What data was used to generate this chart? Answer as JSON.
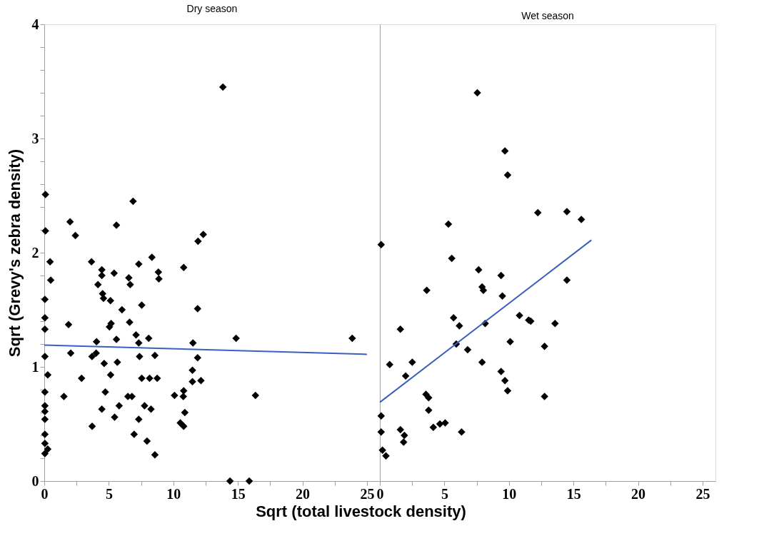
{
  "chart_data": [
    {
      "type": "scatter",
      "title": "Dry season",
      "xlabel": "Sqrt (total livestock density)",
      "ylabel": "Sqrt (Grevy's zebra density)",
      "xlim": [
        0,
        26
      ],
      "ylim": [
        0,
        4
      ],
      "xticks": [
        0,
        {
          "value": 2.5,
          "label": null
        },
        5,
        {
          "value": 7.5,
          "label": null
        },
        10,
        {
          "value": 12.5,
          "label": null
        },
        15,
        {
          "value": 17.5,
          "label": null
        },
        20,
        {
          "value": 22.5,
          "label": null
        },
        25
      ],
      "yticks": [
        0,
        {
          "value": 0.2,
          "label": null
        },
        {
          "value": 0.4,
          "label": null
        },
        {
          "value": 0.6,
          "label": null
        },
        {
          "value": 0.8,
          "label": null
        },
        1,
        {
          "value": 1.2,
          "label": null
        },
        {
          "value": 1.4,
          "label": null
        },
        {
          "value": 1.6,
          "label": null
        },
        {
          "value": 1.8,
          "label": null
        },
        2,
        {
          "value": 2.2,
          "label": null
        },
        {
          "value": 2.4,
          "label": null
        },
        {
          "value": 2.6,
          "label": null
        },
        {
          "value": 2.8,
          "label": null
        },
        3,
        {
          "value": 3.2,
          "label": null
        },
        {
          "value": 3.4,
          "label": null
        },
        {
          "value": 3.6,
          "label": null
        },
        {
          "value": 3.8,
          "label": null
        },
        4
      ],
      "grid": false,
      "marker": "diamond",
      "line_style": "solid",
      "series": [
        {
          "color": "#000000",
          "x": [
            0.09,
            0.09,
            0.45,
            0.5,
            0.05,
            0.05,
            0.05,
            0.05,
            0.27,
            0.05,
            0.05,
            0.05,
            0.05,
            0.05,
            0.05,
            0.27,
            0.05,
            1.88,
            2.05,
            2.89,
            1.52,
            3.66,
            4.46,
            4.46,
            4.16,
            4.52,
            4.59,
            5.13,
            5.41,
            6.02,
            6.61,
            5.18,
            5.05,
            5.59,
            4.05,
            4.02,
            3.7,
            4.64,
            5.66,
            5.14,
            4.73,
            4.46,
            5.8,
            5.45,
            3.71,
            6.55,
            6.66,
            6.48,
            6.79,
            6.96,
            7.32,
            7.55,
            7.11,
            7.32,
            7.38,
            7.55,
            7.32,
            7.77,
            8.27,
            8.34,
            8.84,
            8.88,
            8.09,
            8.57,
            8.16,
            8.75,
            7.96,
            8.57,
            10.8,
            11.88,
            11.52,
            11.88,
            11.48,
            11.48,
            12.14,
            10.09,
            10.8,
            10.77,
            10.89,
            10.54,
            10.8,
            11.91,
            12.32,
            13.84,
            2.0,
            2.41,
            5.59,
            6.88,
            14.86,
            23.86,
            16.36,
            14.39,
            15.88
          ],
          "values": [
            2.51,
            2.19,
            1.92,
            1.76,
            1.59,
            1.43,
            1.33,
            1.09,
            0.93,
            0.78,
            0.66,
            0.61,
            0.54,
            0.41,
            0.33,
            0.28,
            0.24,
            1.37,
            1.12,
            0.9,
            0.74,
            1.92,
            1.85,
            1.8,
            1.72,
            1.64,
            1.6,
            1.58,
            1.82,
            1.5,
            1.39,
            1.38,
            1.35,
            1.24,
            1.22,
            1.12,
            1.09,
            1.03,
            1.04,
            0.93,
            0.78,
            0.63,
            0.66,
            0.56,
            0.48,
            1.78,
            1.72,
            0.74,
            0.74,
            0.41,
            1.9,
            1.54,
            1.28,
            1.21,
            1.09,
            0.9,
            0.54,
            0.66,
            0.63,
            1.96,
            1.83,
            1.77,
            1.25,
            1.1,
            0.9,
            0.9,
            0.35,
            0.23,
            1.87,
            1.51,
            1.21,
            1.08,
            0.97,
            0.87,
            0.88,
            0.75,
            0.79,
            0.74,
            0.6,
            0.51,
            0.48,
            2.1,
            2.16,
            3.45,
            2.27,
            2.15,
            2.24,
            2.45,
            1.25,
            1.25,
            0.75,
            0,
            0
          ]
        },
        {
          "type": "line",
          "marker": "none",
          "color": "#3a5fbe",
          "x": [
            0,
            25
          ],
          "values": [
            1.19,
            1.11
          ]
        }
      ]
    },
    {
      "type": "scatter",
      "title": "Wet season",
      "xlim": [
        0,
        26
      ],
      "ylim": [
        0,
        4
      ],
      "tick_labels": "x",
      "xticks": [
        0,
        {
          "value": 2.5,
          "label": null
        },
        5,
        {
          "value": 7.5,
          "label": null
        },
        10,
        {
          "value": 12.5,
          "label": null
        },
        15,
        {
          "value": 17.5,
          "label": null
        },
        20,
        {
          "value": 22.5,
          "label": null
        },
        25
      ],
      "grid": false,
      "marker": "diamond",
      "line_style": "solid",
      "series": [
        {
          "color": "#000000",
          "x": [
            7.55,
            9.69,
            9.9,
            12.24,
            14.49,
            15.61,
            0.1,
            5.31,
            5.57,
            7.65,
            9.39,
            7.92,
            8.02,
            9.49,
            14.49,
            3.63,
            10.82,
            11.53,
            11.69,
            13.57,
            8.16,
            5.71,
            6.16,
            1.59,
            5.92,
            6.8,
            10.1,
            12.76,
            7.92,
            0.76,
            2.51,
            2.0,
            9.39,
            9.69,
            9.9,
            12.76,
            3.57,
            3.78,
            3.78,
            4.14,
            4.65,
            5.06,
            6.33,
            0.1,
            0.1,
            1.59,
            1.9,
            1.84,
            0.2,
            0.47
          ],
          "values": [
            3.4,
            2.89,
            2.68,
            2.35,
            2.36,
            2.29,
            2.07,
            2.25,
            1.95,
            1.85,
            1.8,
            1.7,
            1.67,
            1.62,
            1.76,
            1.67,
            1.45,
            1.41,
            1.4,
            1.38,
            1.38,
            1.43,
            1.36,
            1.33,
            1.2,
            1.15,
            1.22,
            1.18,
            1.04,
            1.02,
            1.04,
            0.92,
            0.96,
            0.88,
            0.79,
            0.74,
            0.76,
            0.73,
            0.62,
            0.47,
            0.5,
            0.51,
            0.43,
            0.57,
            0.43,
            0.45,
            0.4,
            0.34,
            0.27,
            0.22
          ]
        },
        {
          "type": "line",
          "marker": "none",
          "color": "#3a5fbe",
          "x": [
            0,
            16.39
          ],
          "values": [
            0.69,
            2.11
          ]
        }
      ]
    }
  ]
}
